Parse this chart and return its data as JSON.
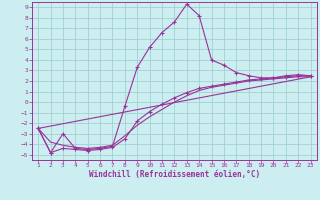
{
  "xlabel": "Windchill (Refroidissement éolien,°C)",
  "background_color": "#cceef0",
  "grid_color": "#99cccc",
  "line_color": "#993399",
  "xlim": [
    0.5,
    23.5
  ],
  "ylim": [
    -5.5,
    9.5
  ],
  "xticks": [
    1,
    2,
    3,
    4,
    5,
    6,
    7,
    8,
    9,
    10,
    11,
    12,
    13,
    14,
    15,
    16,
    17,
    18,
    19,
    20,
    21,
    22,
    23
  ],
  "yticks": [
    -5,
    -4,
    -3,
    -2,
    -1,
    0,
    1,
    2,
    3,
    4,
    5,
    6,
    7,
    8,
    9
  ],
  "line1_x": [
    1,
    2,
    3,
    4,
    5,
    6,
    7,
    8,
    9,
    10,
    11,
    12,
    13,
    14,
    15,
    16,
    17,
    18,
    19,
    20,
    21,
    22,
    23
  ],
  "line1_y": [
    -2.5,
    -4.8,
    -3.0,
    -4.4,
    -4.5,
    -4.4,
    -4.2,
    -0.4,
    3.3,
    5.2,
    6.6,
    7.6,
    9.3,
    8.2,
    4.0,
    3.5,
    2.8,
    2.5,
    2.3,
    2.3,
    2.5,
    2.6,
    2.5
  ],
  "line2_x": [
    1,
    2,
    3,
    4,
    5,
    6,
    7,
    8,
    9,
    10,
    11,
    12,
    13,
    14,
    15,
    16,
    17,
    18,
    19,
    20,
    21,
    22,
    23
  ],
  "line2_y": [
    -2.5,
    -4.8,
    -4.4,
    -4.5,
    -4.6,
    -4.5,
    -4.3,
    -3.5,
    -1.8,
    -0.9,
    -0.2,
    0.4,
    0.9,
    1.3,
    1.5,
    1.7,
    1.9,
    2.1,
    2.2,
    2.3,
    2.4,
    2.5,
    2.5
  ],
  "line3_x": [
    1,
    2,
    3,
    4,
    5,
    6,
    7,
    8,
    9,
    10,
    11,
    12,
    13,
    14,
    15,
    16,
    17,
    18,
    19,
    20,
    21,
    22,
    23
  ],
  "line3_y": [
    -2.5,
    -3.8,
    -4.1,
    -4.3,
    -4.4,
    -4.3,
    -4.1,
    -3.2,
    -2.2,
    -1.4,
    -0.7,
    0.0,
    0.6,
    1.1,
    1.4,
    1.6,
    1.8,
    2.0,
    2.1,
    2.2,
    2.3,
    2.4,
    2.4
  ],
  "line4_x": [
    1,
    23
  ],
  "line4_y": [
    -2.5,
    2.4
  ]
}
